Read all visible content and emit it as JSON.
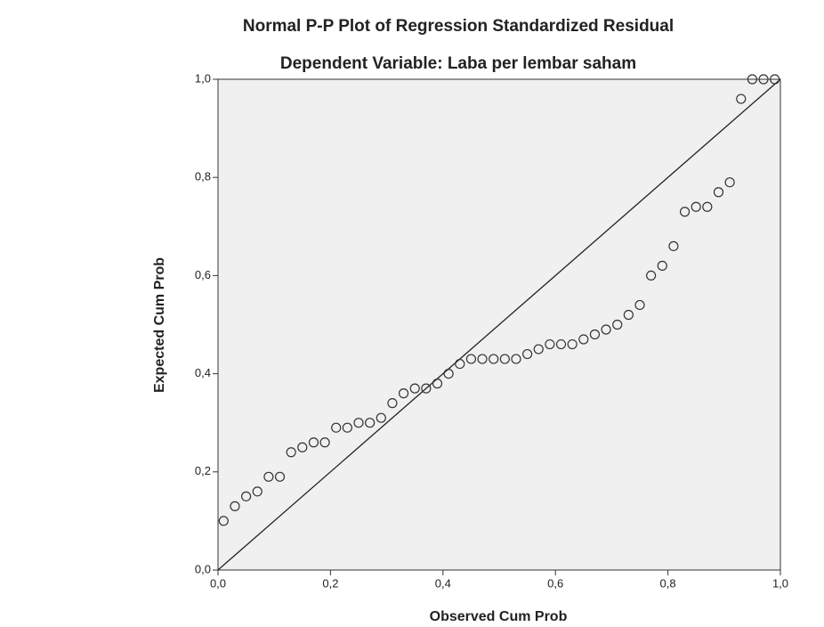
{
  "chart_data": {
    "type": "scatter",
    "title": "Normal P-P Plot of Regression Standardized Residual",
    "subtitle": "Dependent Variable: Laba per lembar saham",
    "x_label": "Observed Cum Prob",
    "y_label": "Expected Cum Prob",
    "x": [
      0.01,
      0.03,
      0.05,
      0.07,
      0.09,
      0.11,
      0.13,
      0.15,
      0.17,
      0.19,
      0.21,
      0.23,
      0.25,
      0.27,
      0.29,
      0.31,
      0.33,
      0.35,
      0.37,
      0.39,
      0.41,
      0.43,
      0.45,
      0.47,
      0.49,
      0.51,
      0.53,
      0.55,
      0.57,
      0.59,
      0.61,
      0.63,
      0.65,
      0.67,
      0.69,
      0.71,
      0.73,
      0.75,
      0.77,
      0.79,
      0.81,
      0.83,
      0.85,
      0.87,
      0.89,
      0.91,
      0.93,
      0.95,
      0.97,
      0.99
    ],
    "values": [
      0.1,
      0.13,
      0.15,
      0.16,
      0.19,
      0.19,
      0.24,
      0.25,
      0.26,
      0.26,
      0.29,
      0.29,
      0.3,
      0.3,
      0.31,
      0.34,
      0.36,
      0.37,
      0.37,
      0.38,
      0.4,
      0.42,
      0.43,
      0.43,
      0.43,
      0.43,
      0.43,
      0.44,
      0.45,
      0.46,
      0.46,
      0.46,
      0.47,
      0.48,
      0.49,
      0.5,
      0.52,
      0.54,
      0.6,
      0.62,
      0.66,
      0.73,
      0.74,
      0.74,
      0.77,
      0.79,
      0.96,
      1.0,
      1.0,
      1.0
    ],
    "color": "#333333",
    "xlim": [
      0,
      1
    ],
    "ylim": [
      0,
      1
    ],
    "xticks": [
      {
        "value": 0,
        "label": "0,0"
      },
      {
        "value": 0.2,
        "label": "0,2"
      },
      {
        "value": 0.4,
        "label": "0,4"
      },
      {
        "value": 0.6,
        "label": "0,6"
      },
      {
        "value": 0.8,
        "label": "0,8"
      },
      {
        "value": 1,
        "label": "1,0"
      }
    ],
    "yticks": [
      {
        "value": 0,
        "label": "0,0"
      },
      {
        "value": 0.2,
        "label": "0,2"
      },
      {
        "value": 0.4,
        "label": "0,4"
      },
      {
        "value": 0.6,
        "label": "0,6"
      },
      {
        "value": 0.8,
        "label": "0,8"
      },
      {
        "value": 1,
        "label": "1,0"
      }
    ]
  }
}
